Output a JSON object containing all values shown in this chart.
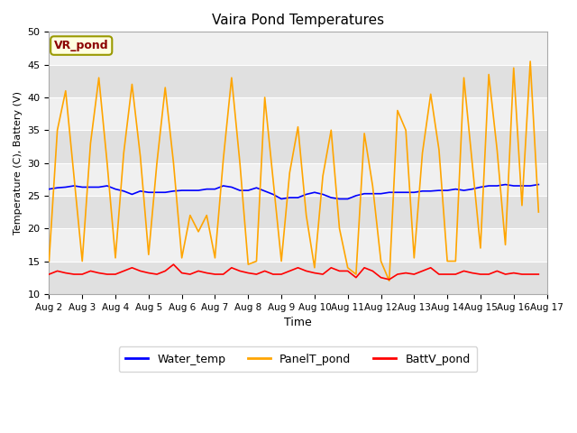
{
  "title": "Vaira Pond Temperatures",
  "xlabel": "Time",
  "ylabel": "Temperature (C), Battery (V)",
  "xlim": [
    0,
    15
  ],
  "ylim": [
    10,
    50
  ],
  "yticks": [
    10,
    15,
    20,
    25,
    30,
    35,
    40,
    45,
    50
  ],
  "xtick_labels": [
    "Aug 2",
    "Aug 3",
    "Aug 4",
    "Aug 5",
    "Aug 6",
    "Aug 7",
    "Aug 8",
    "Aug 9",
    "Aug 10",
    "Aug 11",
    "Aug 12",
    "Aug 13",
    "Aug 14",
    "Aug 15",
    "Aug 16",
    "Aug 17"
  ],
  "xtick_positions": [
    0,
    1,
    2,
    3,
    4,
    5,
    6,
    7,
    8,
    9,
    10,
    11,
    12,
    13,
    14,
    15
  ],
  "annotation_text": "VR_pond",
  "annotation_color": "#8B0000",
  "annotation_bg": "#FFFFE0",
  "annotation_border": "#999900",
  "plot_bg_color": "#E8E8E8",
  "fig_bg_color": "#FFFFFF",
  "water_temp_color": "#0000FF",
  "panel_temp_color": "#FFA500",
  "batt_color": "#FF0000",
  "line_width": 1.2,
  "grid_color": "#FFFFFF",
  "band_color_light": "#F0F0F0",
  "band_color_dark": "#E0E0E0",
  "water_temp": [
    26.0,
    26.2,
    26.3,
    26.5,
    26.3,
    26.3,
    26.3,
    26.5,
    26.0,
    25.7,
    25.2,
    25.7,
    25.5,
    25.5,
    25.5,
    25.7,
    25.8,
    25.8,
    25.8,
    26.0,
    26.0,
    26.5,
    26.3,
    25.8,
    25.8,
    26.2,
    25.7,
    25.2,
    24.5,
    24.7,
    24.7,
    25.2,
    25.5,
    25.2,
    24.7,
    24.5,
    24.5,
    25.0,
    25.3,
    25.3,
    25.3,
    25.5,
    25.5,
    25.5,
    25.5,
    25.7,
    25.7,
    25.8,
    25.8,
    26.0,
    25.8,
    26.0,
    26.3,
    26.5,
    26.5,
    26.7,
    26.5,
    26.5,
    26.5,
    26.7
  ],
  "water_temp_x": [
    0.0,
    0.25,
    0.5,
    0.75,
    1.0,
    1.25,
    1.5,
    1.75,
    2.0,
    2.25,
    2.5,
    2.75,
    3.0,
    3.25,
    3.5,
    3.75,
    4.0,
    4.25,
    4.5,
    4.75,
    5.0,
    5.25,
    5.5,
    5.75,
    6.0,
    6.25,
    6.5,
    6.75,
    7.0,
    7.25,
    7.5,
    7.75,
    8.0,
    8.25,
    8.5,
    8.75,
    9.0,
    9.25,
    9.5,
    9.75,
    10.0,
    10.25,
    10.5,
    10.75,
    11.0,
    11.25,
    11.5,
    11.75,
    12.0,
    12.25,
    12.5,
    12.75,
    13.0,
    13.25,
    13.5,
    13.75,
    14.0,
    14.25,
    14.5,
    14.75
  ],
  "panel_temp": [
    15.0,
    35.0,
    41.0,
    28.0,
    15.0,
    33.0,
    43.0,
    30.0,
    15.5,
    31.5,
    42.0,
    31.0,
    16.0,
    30.0,
    41.5,
    30.0,
    15.5,
    22.0,
    19.5,
    22.0,
    15.5,
    30.5,
    43.0,
    30.0,
    14.5,
    15.0,
    40.0,
    27.5,
    15.0,
    28.5,
    35.5,
    22.0,
    14.0,
    28.0,
    35.0,
    20.0,
    14.0,
    13.0,
    34.5,
    26.5,
    15.0,
    12.0,
    38.0,
    35.0,
    15.5,
    31.5,
    40.5,
    32.0,
    15.0,
    15.0,
    43.0,
    30.0,
    17.0,
    43.5,
    32.0,
    17.5,
    44.5,
    23.5,
    45.5,
    22.5
  ],
  "panel_temp_x": [
    0.0,
    0.25,
    0.5,
    0.75,
    1.0,
    1.25,
    1.5,
    1.75,
    2.0,
    2.25,
    2.5,
    2.75,
    3.0,
    3.25,
    3.5,
    3.75,
    4.0,
    4.25,
    4.5,
    4.75,
    5.0,
    5.25,
    5.5,
    5.75,
    6.0,
    6.25,
    6.5,
    6.75,
    7.0,
    7.25,
    7.5,
    7.75,
    8.0,
    8.25,
    8.5,
    8.75,
    9.0,
    9.25,
    9.5,
    9.75,
    10.0,
    10.25,
    10.5,
    10.75,
    11.0,
    11.25,
    11.5,
    11.75,
    12.0,
    12.25,
    12.5,
    12.75,
    13.0,
    13.25,
    13.5,
    13.75,
    14.0,
    14.25,
    14.5,
    14.75
  ],
  "batt": [
    13.0,
    13.5,
    13.2,
    13.0,
    13.0,
    13.5,
    13.2,
    13.0,
    13.0,
    13.5,
    14.0,
    13.5,
    13.2,
    13.0,
    13.5,
    14.5,
    13.2,
    13.0,
    13.5,
    13.2,
    13.0,
    13.0,
    14.0,
    13.5,
    13.2,
    13.0,
    13.5,
    13.0,
    13.0,
    13.5,
    14.0,
    13.5,
    13.2,
    13.0,
    14.0,
    13.5,
    13.5,
    12.5,
    14.0,
    13.5,
    12.5,
    12.2,
    13.0,
    13.2,
    13.0,
    13.5,
    14.0,
    13.0,
    13.0,
    13.0,
    13.5,
    13.2,
    13.0,
    13.0,
    13.5,
    13.0,
    13.2,
    13.0,
    13.0,
    13.0
  ],
  "batt_x": [
    0.0,
    0.25,
    0.5,
    0.75,
    1.0,
    1.25,
    1.5,
    1.75,
    2.0,
    2.25,
    2.5,
    2.75,
    3.0,
    3.25,
    3.5,
    3.75,
    4.0,
    4.25,
    4.5,
    4.75,
    5.0,
    5.25,
    5.5,
    5.75,
    6.0,
    6.25,
    6.5,
    6.75,
    7.0,
    7.25,
    7.5,
    7.75,
    8.0,
    8.25,
    8.5,
    8.75,
    9.0,
    9.25,
    9.5,
    9.75,
    10.0,
    10.25,
    10.5,
    10.75,
    11.0,
    11.25,
    11.5,
    11.75,
    12.0,
    12.25,
    12.5,
    12.75,
    13.0,
    13.25,
    13.5,
    13.75,
    14.0,
    14.25,
    14.5,
    14.75
  ]
}
